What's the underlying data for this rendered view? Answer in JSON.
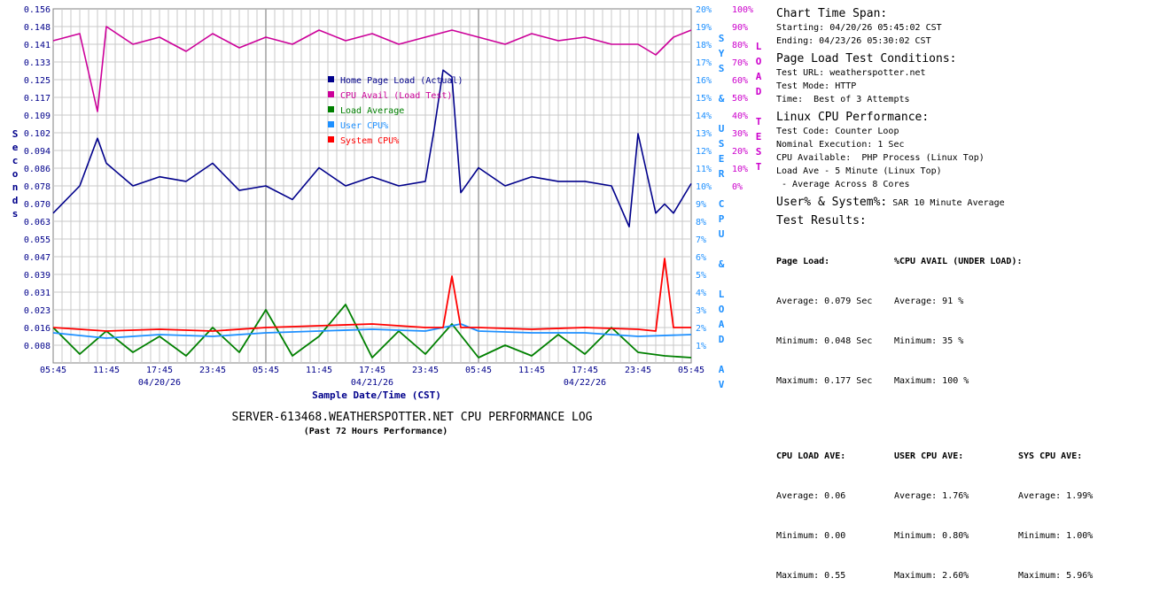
{
  "chart_data": {
    "type": "line",
    "title": "SERVER-613468.WEATHERSPOTTER.NET CPU PERFORMANCE LOG",
    "subtitle": "(Past 72 Hours Performance)",
    "xlabel": "Sample Date/Time (CST)",
    "ylabel_left": "Seconds",
    "ylabel_mid": "SYS & USER CPU & LOAD AV",
    "ylabel_right": "LOAD TEST",
    "y_left_ticks": [
      "0.156",
      "0.148",
      "0.141",
      "0.133",
      "0.125",
      "0.117",
      "0.109",
      "0.102",
      "0.094",
      "0.086",
      "0.078",
      "0.070",
      "0.063",
      "0.055",
      "0.047",
      "0.039",
      "0.031",
      "0.023",
      "0.016",
      "0.008"
    ],
    "y_mid_ticks": [
      "20%",
      "19%",
      "18%",
      "17%",
      "16%",
      "15%",
      "14%",
      "13%",
      "12%",
      "11%",
      "10%",
      "9%",
      "8%",
      "7%",
      "6%",
      "5%",
      "4%",
      "3%",
      "2%",
      "1%"
    ],
    "y_right_ticks": [
      "100%",
      "90%",
      "80%",
      "70%",
      "60%",
      "50%",
      "40%",
      "30%",
      "20%",
      "10%",
      "0%"
    ],
    "x_ticks": [
      "05:45",
      "11:45",
      "17:45",
      "23:45",
      "05:45",
      "11:45",
      "17:45",
      "23:45",
      "05:45",
      "11:45",
      "17:45",
      "23:45",
      "05:45"
    ],
    "date_labels": [
      {
        "label": "04/20/26",
        "tick_index": 2
      },
      {
        "label": "04/21/26",
        "tick_index": 6
      },
      {
        "label": "04/22/26",
        "tick_index": 10
      }
    ],
    "ylim_left": [
      0,
      0.156
    ],
    "ylim_mid": [
      0,
      20
    ],
    "ylim_right": [
      0,
      100
    ],
    "x_range_hours": [
      0,
      72
    ],
    "grid": true,
    "legend": "inside-center",
    "series": [
      {
        "name": "Home Page Load (Actual)",
        "axis": "left",
        "color": "#00008b",
        "x_hours": [
          0,
          3,
          5,
          6,
          9,
          12,
          15,
          18,
          21,
          24,
          27,
          30,
          33,
          36,
          39,
          42,
          43,
          44,
          45,
          46,
          48,
          51,
          54,
          57,
          60,
          63,
          65,
          66,
          68,
          69,
          70,
          72
        ],
        "values": [
          0.066,
          0.078,
          0.099,
          0.088,
          0.078,
          0.082,
          0.08,
          0.088,
          0.076,
          0.078,
          0.072,
          0.086,
          0.078,
          0.082,
          0.078,
          0.08,
          0.103,
          0.129,
          0.126,
          0.075,
          0.086,
          0.078,
          0.082,
          0.08,
          0.08,
          0.078,
          0.06,
          0.101,
          0.066,
          0.07,
          0.066,
          0.079
        ]
      },
      {
        "name": "CPU Avail (Load Test)",
        "axis": "right",
        "color": "#cc0099",
        "x_hours": [
          0,
          3,
          5,
          6,
          9,
          12,
          15,
          18,
          21,
          24,
          27,
          30,
          33,
          36,
          39,
          42,
          45,
          48,
          51,
          54,
          57,
          60,
          63,
          66,
          68,
          70,
          72
        ],
        "values": [
          91,
          93,
          71,
          95,
          90,
          92,
          88,
          93,
          89,
          92,
          90,
          94,
          91,
          93,
          90,
          92,
          94,
          92,
          90,
          93,
          91,
          92,
          90,
          90,
          87,
          92,
          94
        ]
      },
      {
        "name": "Load Average",
        "axis": "mid",
        "color": "#008000",
        "x_hours": [
          0,
          3,
          6,
          9,
          12,
          15,
          18,
          21,
          24,
          27,
          30,
          33,
          36,
          39,
          42,
          45,
          48,
          51,
          54,
          57,
          60,
          63,
          66,
          69,
          72
        ],
        "values": [
          2.0,
          0.5,
          1.8,
          0.6,
          1.5,
          0.4,
          2.0,
          0.6,
          3.0,
          0.4,
          1.5,
          3.3,
          0.3,
          1.8,
          0.5,
          2.2,
          0.3,
          1.0,
          0.4,
          1.6,
          0.5,
          2.0,
          0.6,
          0.4,
          0.3
        ]
      },
      {
        "name": "User CPU%",
        "axis": "mid",
        "color": "#1e90ff",
        "x_hours": [
          0,
          6,
          12,
          18,
          24,
          30,
          36,
          42,
          46,
          48,
          54,
          60,
          66,
          72
        ],
        "values": [
          1.7,
          1.4,
          1.6,
          1.5,
          1.7,
          1.8,
          1.9,
          1.8,
          2.2,
          1.8,
          1.7,
          1.7,
          1.5,
          1.6
        ]
      },
      {
        "name": "System CPU%",
        "axis": "mid",
        "color": "#ff0000",
        "x_hours": [
          0,
          6,
          12,
          18,
          24,
          30,
          36,
          42,
          44,
          45,
          46,
          48,
          54,
          60,
          66,
          68,
          69,
          70,
          72
        ],
        "values": [
          2.0,
          1.8,
          1.9,
          1.8,
          2.0,
          2.1,
          2.2,
          2.0,
          2.0,
          4.9,
          2.0,
          2.0,
          1.9,
          2.0,
          1.9,
          1.8,
          5.9,
          2.0,
          2.0
        ]
      }
    ]
  },
  "info": {
    "time_span_heading": "Chart Time Span:",
    "starting": "Starting: 04/20/26 05:45:02 CST",
    "ending": "Ending: 04/23/26 05:30:02 CST",
    "conditions_heading": "Page Load Test Conditions:",
    "test_url": "Test URL: weatherspotter.net",
    "test_mode": "Test Mode: HTTP",
    "time": "Time:  Best of 3 Attempts",
    "cpu_heading": "Linux CPU Performance:",
    "test_code": "Test Code: Counter Loop",
    "nominal": "Nominal Execution: 1 Sec",
    "cpu_available": "CPU Available:  PHP Process (Linux Top)",
    "load_ave": "Load Ave - 5 Minute (Linux Top)",
    "average_cores": " - Average Across 8 Cores",
    "usersys_heading": "User% & System%:",
    "usersys_note": "SAR 10 Minute Average",
    "results_heading": "Test Results:",
    "page_load": {
      "header": "Page Load:",
      "average": "Average: 0.079 Sec",
      "minimum": "Minimum: 0.048 Sec",
      "maximum": "Maximum: 0.177 Sec"
    },
    "cpu_avail": {
      "header": "%CPU AVAIL (UNDER LOAD):",
      "average": "Average: 91 %",
      "minimum": "Minimum: 35 %",
      "maximum": "Maximum: 100 %"
    },
    "cpu_load_ave": {
      "header": "CPU LOAD AVE:",
      "average": "Average: 0.06",
      "minimum": "Minimum: 0.00",
      "maximum": "Maximum: 0.55"
    },
    "user_cpu_ave": {
      "header": "USER CPU AVE:",
      "average": "Average: 1.76%",
      "minimum": "Minimum: 0.80%",
      "maximum": "Maximum: 2.60%"
    },
    "sys_cpu_ave": {
      "header": "SYS CPU AVE:",
      "average": "Average: 1.99%",
      "minimum": "Minimum: 1.00%",
      "maximum": "Maximum: 5.96%"
    }
  },
  "colors": {
    "grid": "#c8c8c8",
    "frame": "#808080",
    "axis_left": "#00008b",
    "axis_mid": "#1e90ff",
    "axis_right": "#cc00cc"
  }
}
